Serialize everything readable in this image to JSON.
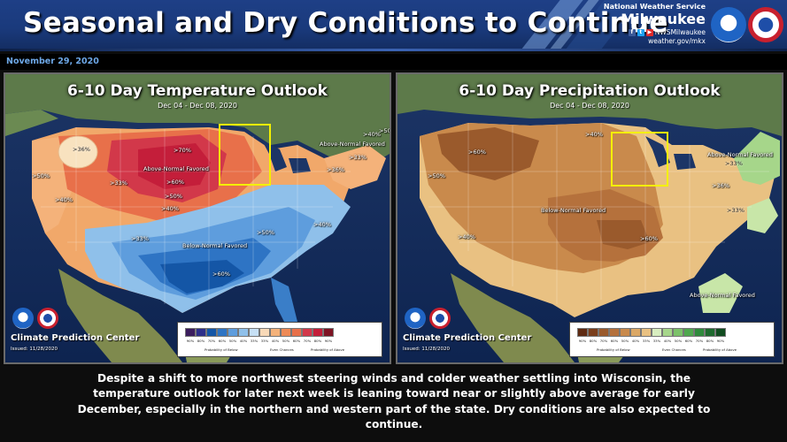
{
  "header": {
    "title": "Seasonal and Dry Conditions to Continue",
    "agency": "National Weather Service",
    "office": "Milwaukee",
    "social": "NWSMilwaukee",
    "website": "weather.gov/mkx"
  },
  "date": "November 29, 2020",
  "temperature_panel": {
    "title": "6-10 Day Temperature Outlook",
    "dates": "Dec 04 - Dec 08, 2020",
    "labels": {
      "p36_west": ">36%",
      "p70": ">70%",
      "above_normal": "Above-Normal Favored",
      "above_normal_ne": "Above-Normal Favored",
      "p60": ">60%",
      "p50": ">50%",
      "p40": ">40%",
      "p33": ">33%",
      "p50_west": ">50%",
      "p40_west": ">40%",
      "p33_central": ">33%",
      "p40_ne": ">40%",
      "p50_ne": ">50%",
      "p33_ne": ">33%",
      "p36_ne": ">36%",
      "p33_sw": ">33%",
      "below_normal": "Below-Normal Favored",
      "p50_se": ">50%",
      "p40_se": ">40%",
      "p60_s": ">60%"
    },
    "source": "Climate Prediction Center",
    "issued": "Issued: 11/28/2020",
    "legend_values": [
      "90%",
      "80%",
      "70%",
      "60%",
      "50%",
      "40%",
      "33%",
      "33%",
      "40%",
      "50%",
      "60%",
      "70%",
      "80%",
      "90%"
    ],
    "legend_left": "Probability of Below",
    "legend_mid": "Even Chances",
    "legend_right": "Probability of Above"
  },
  "precipitation_panel": {
    "title": "6-10 Day Precipitation Outlook",
    "dates": "Dec 04 - Dec 08, 2020",
    "labels": {
      "p60_nw": ">60%",
      "p50_w": ">50%",
      "p40_n": ">40%",
      "p40_sw": ">40%",
      "below_normal": "Below-Normal Favored",
      "p60_c": ">60%",
      "p33_e": ">33%",
      "above_normal_ne": "Above-Normal Favored",
      "p33_ne": ">33%",
      "p36_ne": ">36%",
      "above_normal_se": "Above-Normal Favored"
    },
    "source": "Climate Prediction Center",
    "issued": "Issued: 11/28/2020",
    "legend_values": [
      "90%",
      "80%",
      "70%",
      "60%",
      "50%",
      "40%",
      "33%",
      "33%",
      "40%",
      "50%",
      "60%",
      "70%",
      "80%",
      "90%"
    ],
    "legend_left": "Probability of Below",
    "legend_mid": "Even Chances",
    "legend_right": "Probability of Above"
  },
  "summary": "Despite a shift to more northwest steering winds and colder weather settling into Wisconsin, the temperature outlook for later next week is leaning toward near or slightly above average for early December, especially in the northern and western part of the state.    Dry conditions are also expected to continue.",
  "colors": {
    "header": "#1a3a7c",
    "highlight": "#f4f000",
    "above_strong": "#c41e3a",
    "above_mid": "#e8704a",
    "above_light": "#f4b27a",
    "below_strong": "#1456a6",
    "below_light": "#8fc0ea",
    "dry_strong": "#9a5a2c",
    "dry_mid": "#c98a4c",
    "dry_light": "#e9c182",
    "wet": "#a6d68a"
  }
}
